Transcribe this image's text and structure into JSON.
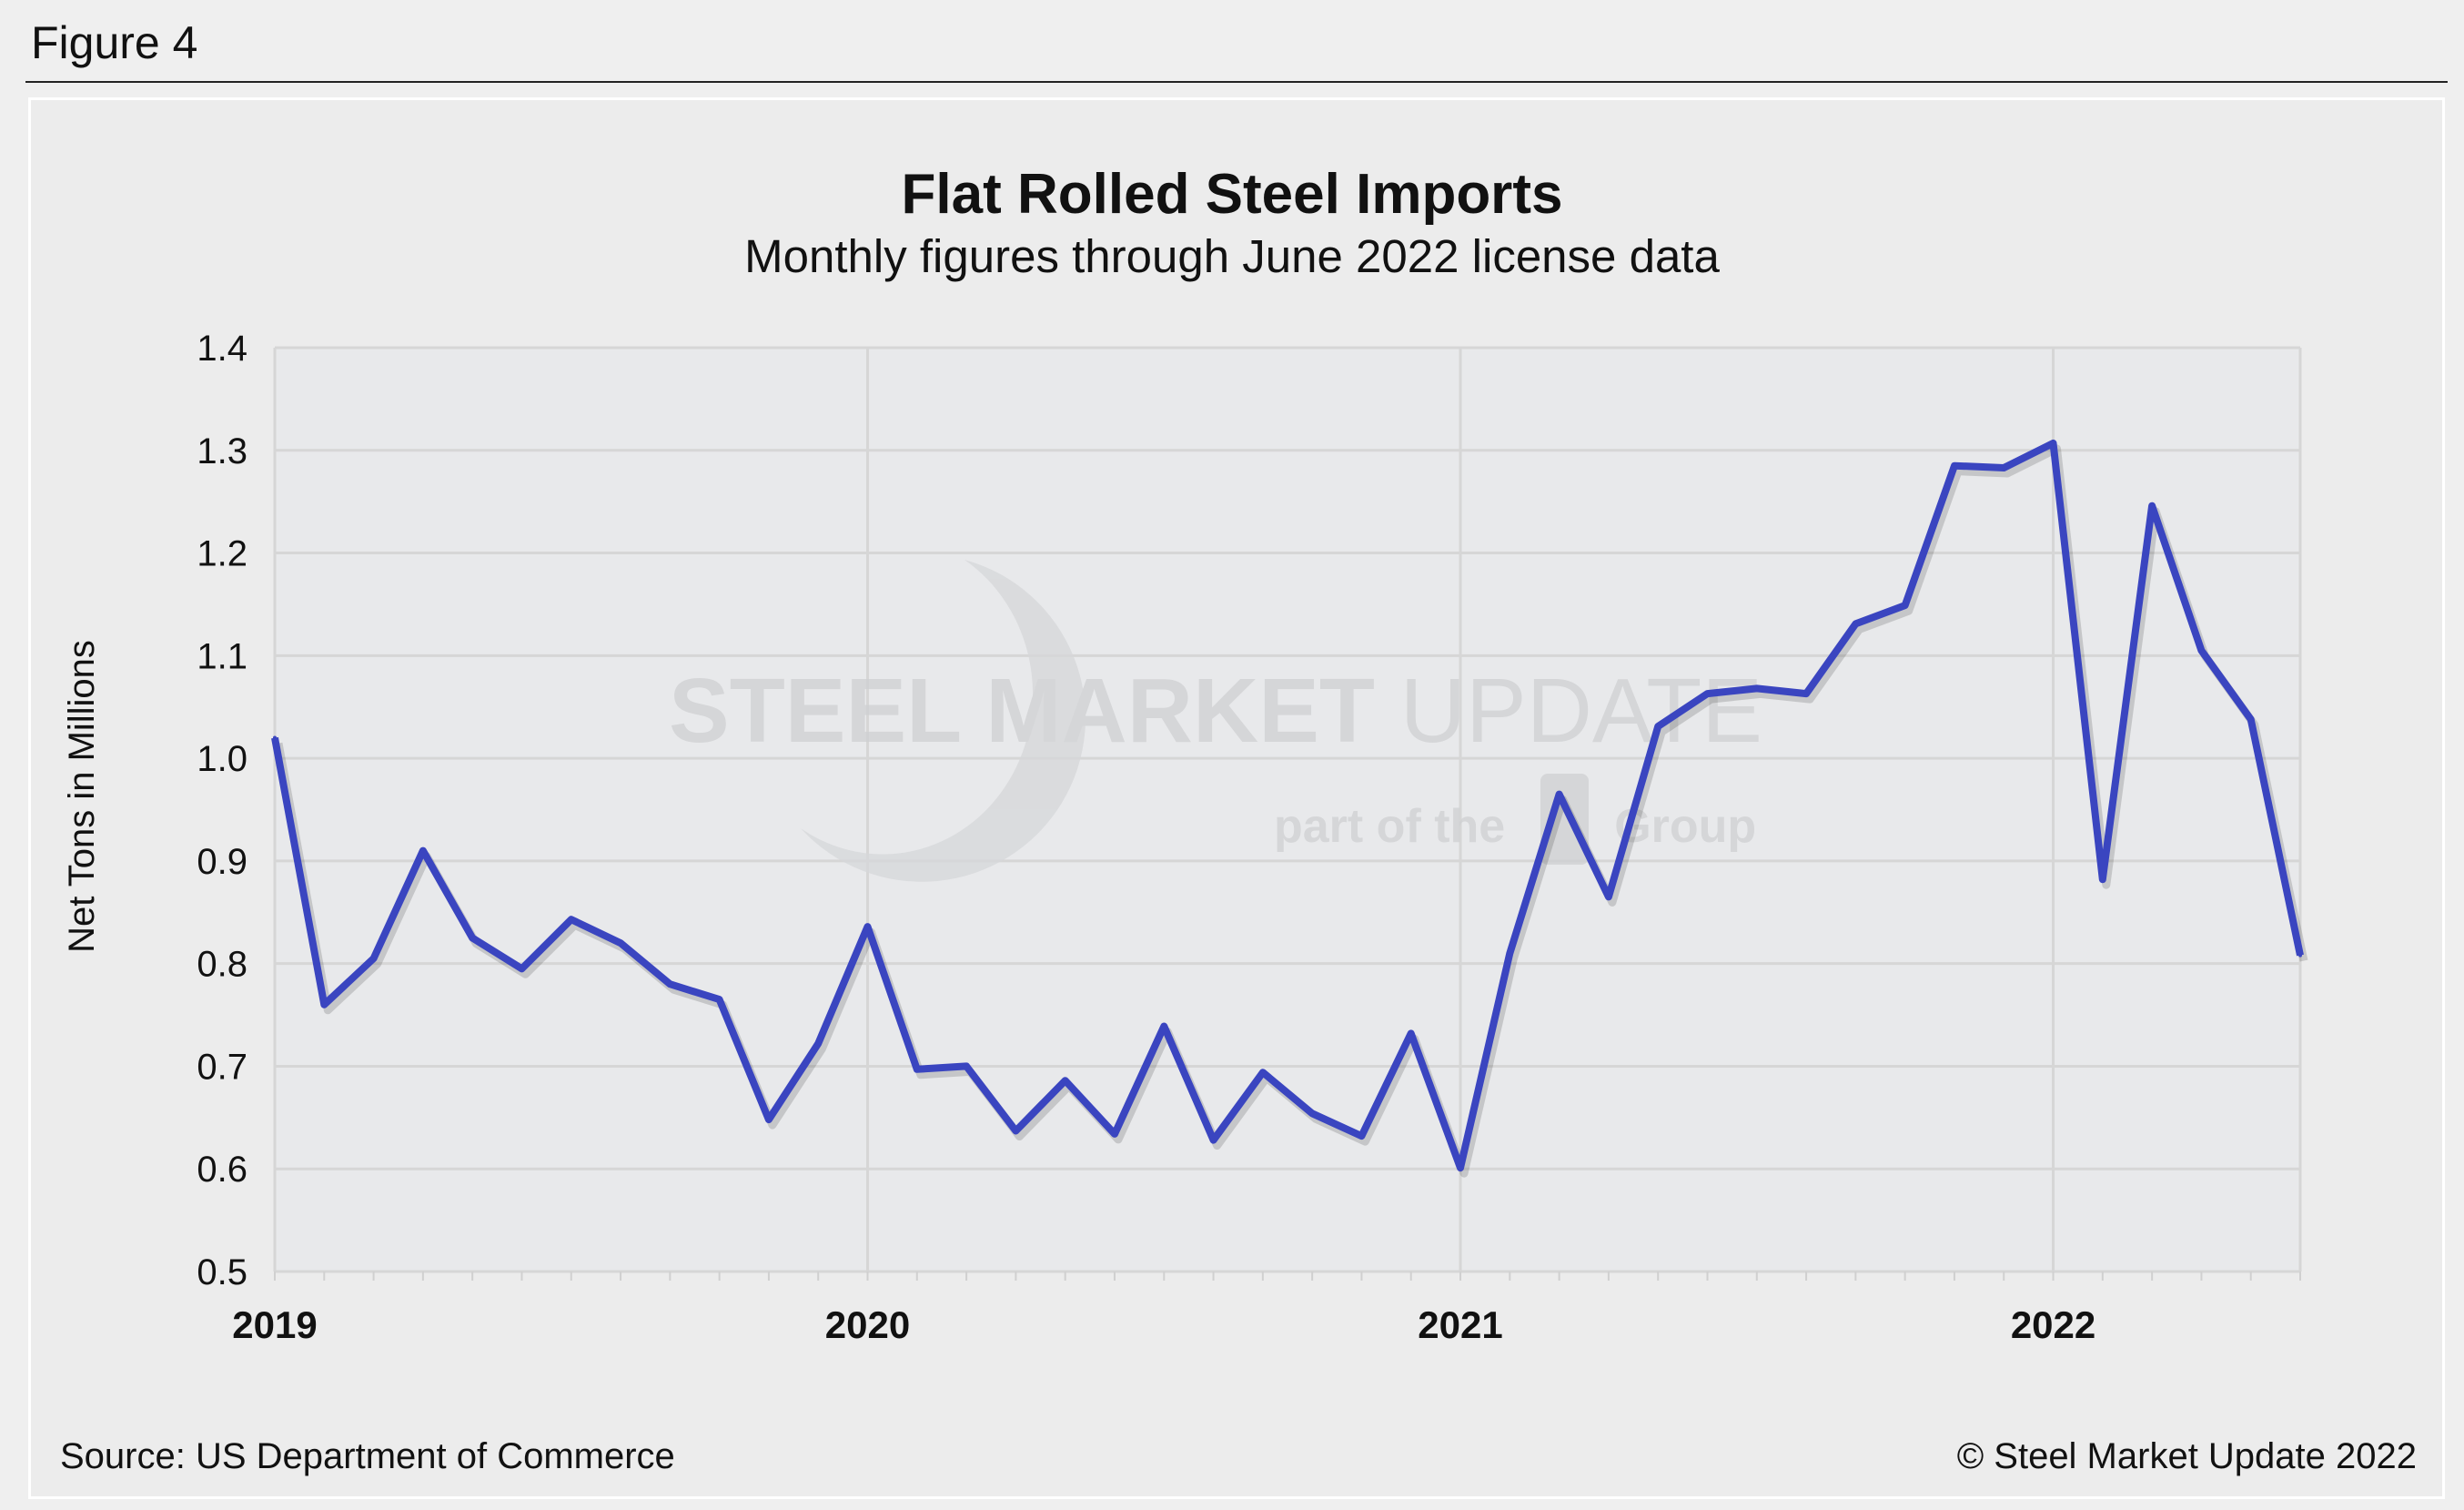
{
  "figure_label": "Figure 4",
  "source": "Source: US Department of Commerce",
  "copyright": "© Steel Market Update 2022",
  "watermark": {
    "line1_bold": "STEEL MARKET",
    "line1_light": "UPDATE",
    "line2": "part of the",
    "logo": "CRU",
    "line2_end": "Group"
  },
  "chart_data": {
    "type": "line",
    "title": "Flat Rolled Steel Imports",
    "subtitle": "Monthly figures through June 2022 license data",
    "ylabel": "Net Tons in Millions",
    "xlabel": "",
    "ylim": [
      0.5,
      1.4
    ],
    "yticks": [
      "0.5",
      "0.6",
      "0.7",
      "0.8",
      "0.9",
      "1.0",
      "1.1",
      "1.2",
      "1.3",
      "1.4"
    ],
    "xticks": [
      "2019",
      "2020",
      "2021",
      "2022"
    ],
    "grid": true,
    "line_color": "#3a45c0",
    "x": [
      "2019-01",
      "2019-02",
      "2019-03",
      "2019-04",
      "2019-05",
      "2019-06",
      "2019-07",
      "2019-08",
      "2019-09",
      "2019-10",
      "2019-11",
      "2019-12",
      "2020-01",
      "2020-02",
      "2020-03",
      "2020-04",
      "2020-05",
      "2020-06",
      "2020-07",
      "2020-08",
      "2020-09",
      "2020-10",
      "2020-11",
      "2020-12",
      "2021-01",
      "2021-02",
      "2021-03",
      "2021-04",
      "2021-05",
      "2021-06",
      "2021-07",
      "2021-08",
      "2021-09",
      "2021-10",
      "2021-11",
      "2021-12",
      "2022-01",
      "2022-02",
      "2022-03",
      "2022-04",
      "2022-05",
      "2022-06"
    ],
    "values": [
      1.02,
      0.76,
      0.805,
      0.91,
      0.825,
      0.795,
      0.843,
      0.82,
      0.78,
      0.765,
      0.648,
      0.722,
      0.836,
      0.697,
      0.7,
      0.637,
      0.686,
      0.634,
      0.739,
      0.628,
      0.694,
      0.654,
      0.632,
      0.732,
      0.601,
      0.81,
      0.965,
      0.865,
      1.031,
      1.063,
      1.068,
      1.063,
      1.131,
      1.149,
      1.285,
      1.283,
      1.307,
      0.882,
      1.246,
      1.105,
      1.038,
      0.808
    ]
  }
}
